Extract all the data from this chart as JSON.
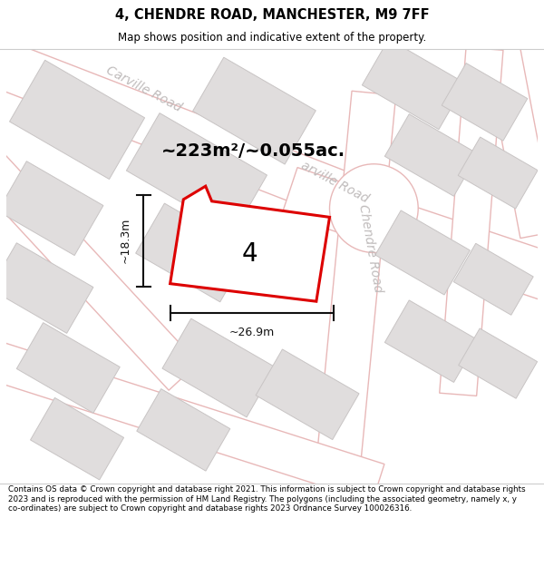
{
  "title": "4, CHENDRE ROAD, MANCHESTER, M9 7FF",
  "subtitle": "Map shows position and indicative extent of the property.",
  "footer": "Contains OS data © Crown copyright and database right 2021. This information is subject to Crown copyright and database rights 2023 and is reproduced with the permission of HM Land Registry. The polygons (including the associated geometry, namely x, y co-ordinates) are subject to Crown copyright and database rights 2023 Ordnance Survey 100026316.",
  "map_bg": "#f7f5f5",
  "road_edge_color": "#e8b8b8",
  "road_fill_color": "#ffffff",
  "building_fill": "#e0dddd",
  "building_edge": "#c8c4c4",
  "highlight_stroke": "#dd0000",
  "area_text": "~223m²/~0.055ac.",
  "label_number": "4",
  "dim_width": "~26.9m",
  "dim_height": "~18.3m",
  "road_label_color": "#c0bcbc",
  "annotation_color": "#111111"
}
